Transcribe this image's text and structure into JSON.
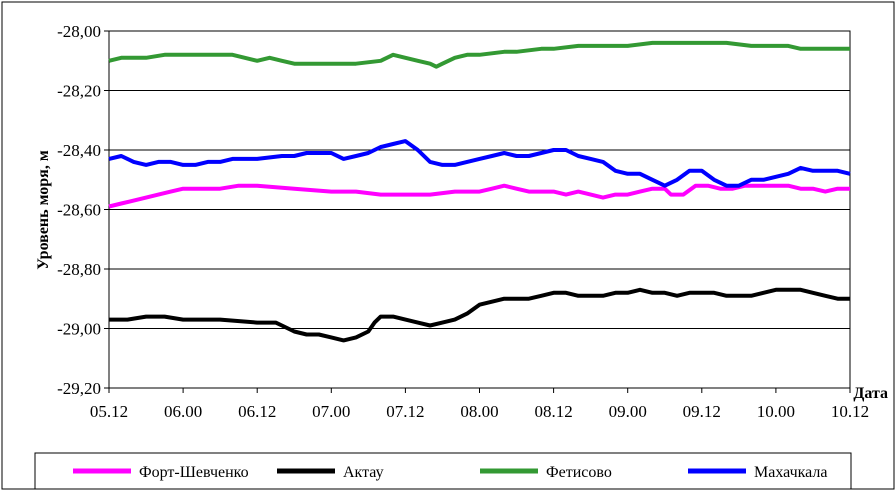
{
  "chart_data": {
    "type": "line",
    "title": "",
    "xlabel": "Дата",
    "ylabel": "Уровень моря, м",
    "ylim": [
      -29.2,
      -28.0
    ],
    "y_ticks": [
      "-28,00",
      "-28,20",
      "-28,40",
      "-28,60",
      "-28,80",
      "-29,00",
      "-29,20"
    ],
    "y_tick_values": [
      -28.0,
      -28.2,
      -28.4,
      -28.6,
      -28.8,
      -29.0,
      -29.2
    ],
    "x_ticks": [
      "05.12",
      "06.00",
      "06.12",
      "07.00",
      "07.12",
      "08.00",
      "08.12",
      "09.00",
      "09.12",
      "10.00",
      "10.12"
    ],
    "x_tick_values": [
      0,
      12,
      24,
      36,
      48,
      60,
      72,
      84,
      96,
      108,
      120
    ],
    "xlim": [
      0,
      120
    ],
    "grid": "horizontal",
    "legend_position": "bottom",
    "series": [
      {
        "name": "Форт-Шевченко",
        "color": "#ff00ff",
        "x": [
          0,
          2,
          4,
          6,
          8,
          10,
          12,
          15,
          18,
          21,
          24,
          30,
          36,
          40,
          44,
          48,
          52,
          56,
          60,
          62,
          64,
          66,
          68,
          70,
          72,
          74,
          76,
          78,
          80,
          82,
          84,
          86,
          88,
          90,
          91,
          93,
          95,
          97,
          99,
          101,
          103,
          105,
          107,
          110,
          112,
          114,
          116,
          118,
          120
        ],
        "values": [
          -28.59,
          -28.58,
          -28.57,
          -28.56,
          -28.55,
          -28.54,
          -28.53,
          -28.53,
          -28.53,
          -28.52,
          -28.52,
          -28.53,
          -28.54,
          -28.54,
          -28.55,
          -28.55,
          -28.55,
          -28.54,
          -28.54,
          -28.53,
          -28.52,
          -28.53,
          -28.54,
          -28.54,
          -28.54,
          -28.55,
          -28.54,
          -28.55,
          -28.56,
          -28.55,
          -28.55,
          -28.54,
          -28.53,
          -28.53,
          -28.55,
          -28.55,
          -28.52,
          -28.52,
          -28.53,
          -28.53,
          -28.52,
          -28.52,
          -28.52,
          -28.52,
          -28.53,
          -28.53,
          -28.54,
          -28.53,
          -28.53
        ]
      },
      {
        "name": "Актау",
        "color": "#000000",
        "x": [
          0,
          3,
          6,
          9,
          12,
          18,
          24,
          27,
          28,
          30,
          32,
          34,
          36,
          38,
          40,
          42,
          43,
          44,
          46,
          48,
          50,
          52,
          54,
          56,
          58,
          60,
          62,
          64,
          66,
          68,
          70,
          72,
          74,
          76,
          78,
          80,
          82,
          84,
          86,
          88,
          90,
          92,
          94,
          96,
          98,
          100,
          102,
          104,
          106,
          108,
          110,
          112,
          114,
          116,
          118,
          120
        ],
        "values": [
          -28.97,
          -28.97,
          -28.96,
          -28.96,
          -28.97,
          -28.97,
          -28.98,
          -28.98,
          -28.99,
          -29.01,
          -29.02,
          -29.02,
          -29.03,
          -29.04,
          -29.03,
          -29.01,
          -28.98,
          -28.96,
          -28.96,
          -28.97,
          -28.98,
          -28.99,
          -28.98,
          -28.97,
          -28.95,
          -28.92,
          -28.91,
          -28.9,
          -28.9,
          -28.9,
          -28.89,
          -28.88,
          -28.88,
          -28.89,
          -28.89,
          -28.89,
          -28.88,
          -28.88,
          -28.87,
          -28.88,
          -28.88,
          -28.89,
          -28.88,
          -28.88,
          -28.88,
          -28.89,
          -28.89,
          -28.89,
          -28.88,
          -28.87,
          -28.87,
          -28.87,
          -28.88,
          -28.89,
          -28.9,
          -28.9
        ]
      },
      {
        "name": "Фетисово",
        "color": "#339933",
        "x": [
          0,
          2,
          6,
          9,
          12,
          20,
          22,
          24,
          26,
          28,
          30,
          32,
          36,
          40,
          44,
          45,
          46,
          48,
          50,
          52,
          53,
          54,
          56,
          58,
          60,
          64,
          66,
          70,
          72,
          76,
          80,
          84,
          88,
          92,
          96,
          100,
          104,
          108,
          110,
          112,
          116,
          120
        ],
        "values": [
          -28.1,
          -28.09,
          -28.09,
          -28.08,
          -28.08,
          -28.08,
          -28.09,
          -28.1,
          -28.09,
          -28.1,
          -28.11,
          -28.11,
          -28.11,
          -28.11,
          -28.1,
          -28.09,
          -28.08,
          -28.09,
          -28.1,
          -28.11,
          -28.12,
          -28.11,
          -28.09,
          -28.08,
          -28.08,
          -28.07,
          -28.07,
          -28.06,
          -28.06,
          -28.05,
          -28.05,
          -28.05,
          -28.04,
          -28.04,
          -28.04,
          -28.04,
          -28.05,
          -28.05,
          -28.05,
          -28.06,
          -28.06,
          -28.06
        ]
      },
      {
        "name": "Махачкала",
        "color": "#0000ff",
        "x": [
          0,
          2,
          4,
          6,
          8,
          10,
          12,
          14,
          16,
          18,
          20,
          24,
          28,
          30,
          32,
          34,
          35,
          36,
          38,
          40,
          42,
          44,
          46,
          48,
          50,
          52,
          54,
          56,
          58,
          60,
          62,
          64,
          66,
          68,
          70,
          72,
          74,
          76,
          78,
          80,
          82,
          84,
          86,
          88,
          90,
          92,
          94,
          96,
          98,
          100,
          102,
          104,
          106,
          108,
          110,
          112,
          114,
          116,
          118,
          120
        ],
        "values": [
          -28.43,
          -28.42,
          -28.44,
          -28.45,
          -28.44,
          -28.44,
          -28.45,
          -28.45,
          -28.44,
          -28.44,
          -28.43,
          -28.43,
          -28.42,
          -28.42,
          -28.41,
          -28.41,
          -28.41,
          -28.41,
          -28.43,
          -28.42,
          -28.41,
          -28.39,
          -28.38,
          -28.37,
          -28.4,
          -28.44,
          -28.45,
          -28.45,
          -28.44,
          -28.43,
          -28.42,
          -28.41,
          -28.42,
          -28.42,
          -28.41,
          -28.4,
          -28.4,
          -28.42,
          -28.43,
          -28.44,
          -28.47,
          -28.48,
          -28.48,
          -28.5,
          -28.52,
          -28.5,
          -28.47,
          -28.47,
          -28.5,
          -28.52,
          -28.52,
          -28.5,
          -28.5,
          -28.49,
          -28.48,
          -28.46,
          -28.47,
          -28.47,
          -28.47,
          -28.48
        ]
      }
    ]
  }
}
